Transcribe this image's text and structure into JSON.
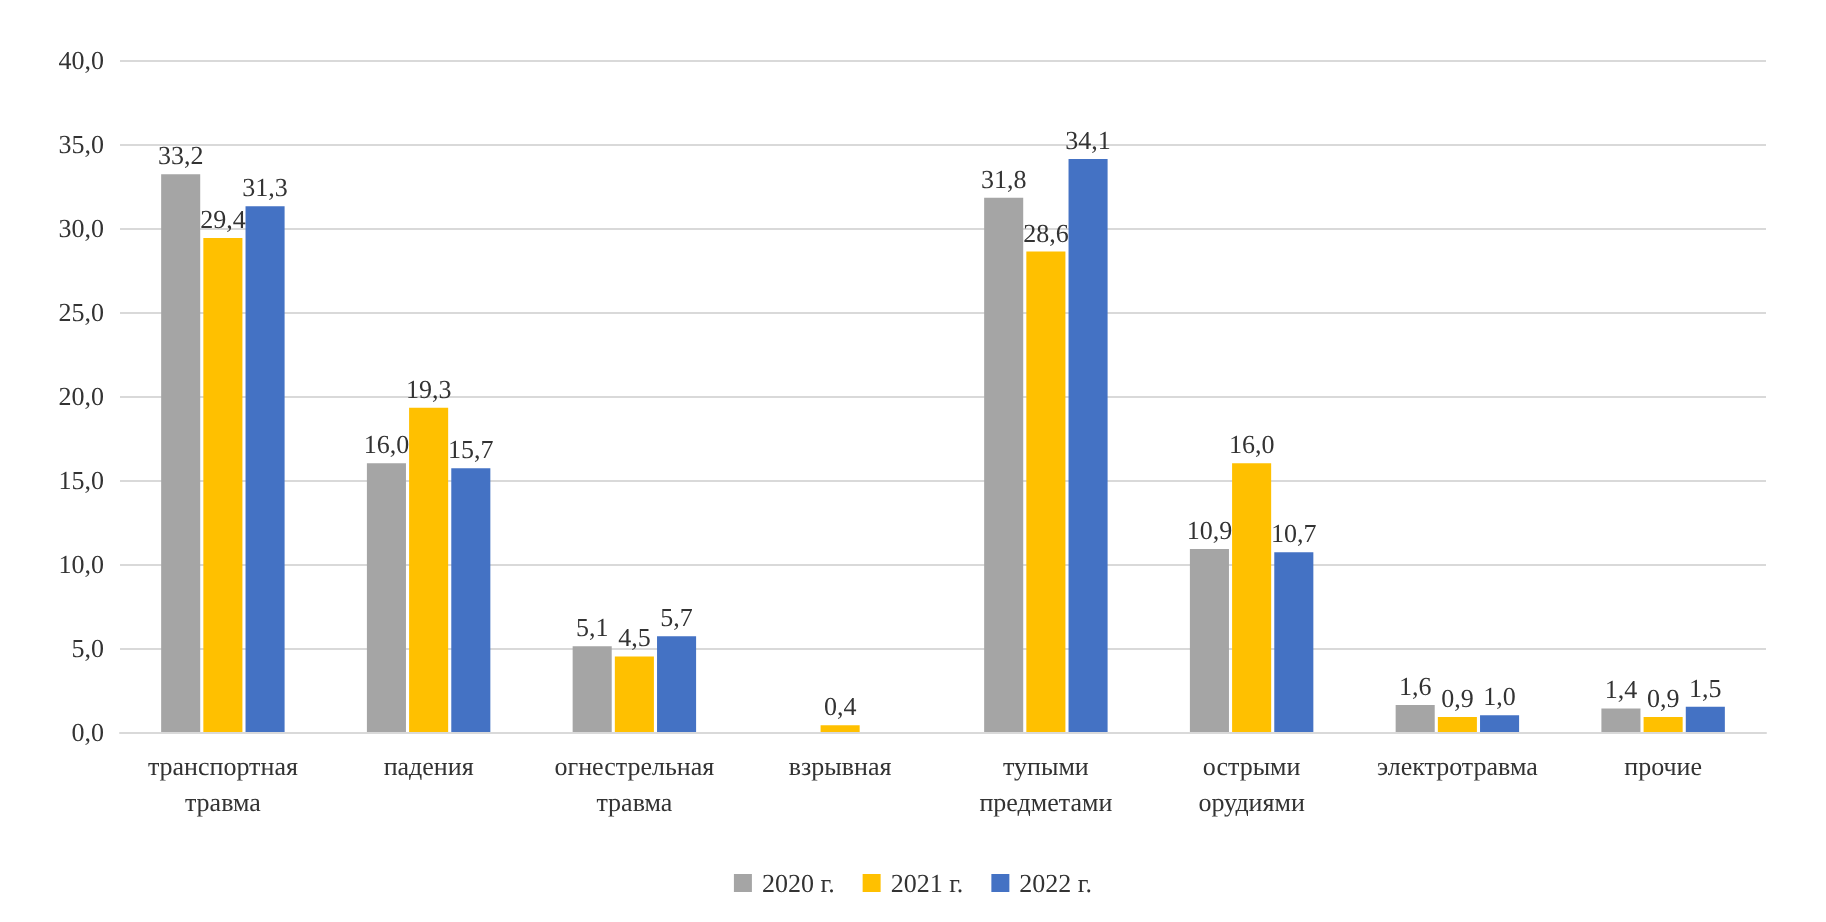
{
  "chart_data": {
    "type": "bar",
    "categories": [
      "транспортная травма",
      "падения",
      "огнестрельная травма",
      "взрывная",
      "тупыми предметами",
      "острыми орудиями",
      "электротравма",
      "прочие"
    ],
    "series": [
      {
        "name": "2020 г.",
        "color": "#a5a5a5",
        "values": [
          33.2,
          16.0,
          5.1,
          null,
          31.8,
          10.9,
          1.6,
          1.4
        ],
        "value_labels": [
          "33,2",
          "16,0",
          "5,1",
          null,
          "31,8",
          "10,9",
          "1,6",
          "1,4"
        ]
      },
      {
        "name": "2021 г.",
        "color": "#ffc000",
        "values": [
          29.4,
          19.3,
          4.5,
          0.4,
          28.6,
          16.0,
          0.9,
          0.9
        ],
        "value_labels": [
          "29,4",
          "19,3",
          "4,5",
          "0,4",
          "28,6",
          "16,0",
          "0,9",
          "0,9"
        ]
      },
      {
        "name": "2022 г.",
        "color": "#4472c4",
        "values": [
          31.3,
          15.7,
          5.7,
          null,
          34.1,
          10.7,
          1.0,
          1.5
        ],
        "value_labels": [
          "31,3",
          "15,7",
          "5,7",
          null,
          "34,1",
          "10,7",
          "1,0",
          "1,5"
        ]
      }
    ],
    "ylim": [
      0,
      40
    ],
    "yticks": [
      {
        "value": 0,
        "label": "0,0"
      },
      {
        "value": 5,
        "label": "5,0"
      },
      {
        "value": 10,
        "label": "10,0"
      },
      {
        "value": 15,
        "label": "15,0"
      },
      {
        "value": 20,
        "label": "20,0"
      },
      {
        "value": 25,
        "label": "25,0"
      },
      {
        "value": 30,
        "label": "30,0"
      },
      {
        "value": 35,
        "label": "35,0"
      },
      {
        "value": 40,
        "label": "40,0"
      }
    ],
    "grid": "y",
    "legend": "bottom"
  }
}
